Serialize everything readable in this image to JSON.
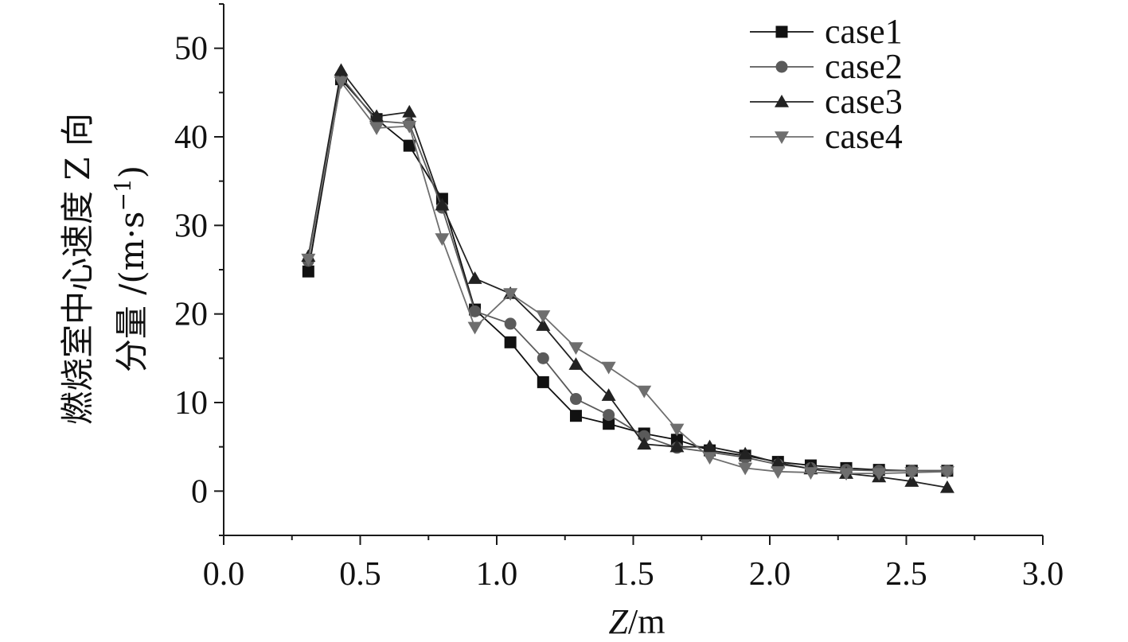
{
  "chart_data": {
    "type": "line",
    "title": "",
    "xlabel_italic": "Z",
    "xlabel_unit": "/m",
    "ylabel_line1": "燃烧室中心速度 Z 向",
    "ylabel_line2": "分量 /(m·s",
    "ylabel_sup": "−1",
    "ylabel_close": ")",
    "xlim": [
      0.0,
      3.0
    ],
    "ylim": [
      -5,
      55
    ],
    "xticks": [
      0.0,
      0.5,
      1.0,
      1.5,
      2.0,
      2.5,
      3.0
    ],
    "xtick_labels": [
      "0.0",
      "0.5",
      "1.0",
      "1.5",
      "2.0",
      "2.5",
      "3.0"
    ],
    "yticks": [
      0,
      10,
      20,
      30,
      40,
      50
    ],
    "ytick_labels": [
      "0",
      "10",
      "20",
      "30",
      "40",
      "50"
    ],
    "grid": false,
    "legend_position": "top-right",
    "series": [
      {
        "name": "case1",
        "marker": "square",
        "color": "#111111",
        "x": [
          0.31,
          0.43,
          0.56,
          0.68,
          0.8,
          0.92,
          1.05,
          1.17,
          1.29,
          1.41,
          1.54,
          1.66,
          1.78,
          1.91,
          2.03,
          2.15,
          2.28,
          2.4,
          2.52,
          2.65
        ],
        "y": [
          24.8,
          46.5,
          42.0,
          39.0,
          33.0,
          20.5,
          16.8,
          12.3,
          8.5,
          7.6,
          6.5,
          5.8,
          4.6,
          4.0,
          3.3,
          2.9,
          2.6,
          2.4,
          2.3,
          2.3
        ]
      },
      {
        "name": "case2",
        "marker": "circle",
        "color": "#5a5a5a",
        "x": [
          0.31,
          0.43,
          0.56,
          0.68,
          0.8,
          0.92,
          1.05,
          1.17,
          1.29,
          1.41,
          1.54,
          1.66,
          1.78,
          1.91,
          2.03,
          2.15,
          2.28,
          2.4,
          2.52,
          2.65
        ],
        "y": [
          26.0,
          46.8,
          41.8,
          41.5,
          32.0,
          20.3,
          18.9,
          15.0,
          10.4,
          8.6,
          6.2,
          4.9,
          4.4,
          3.8,
          3.0,
          2.6,
          2.4,
          2.3,
          2.3,
          2.3
        ]
      },
      {
        "name": "case3",
        "marker": "triangle-up",
        "color": "#222222",
        "x": [
          0.31,
          0.43,
          0.56,
          0.68,
          0.8,
          0.92,
          1.05,
          1.17,
          1.29,
          1.41,
          1.54,
          1.66,
          1.78,
          1.91,
          2.03,
          2.15,
          2.28,
          2.4,
          2.52,
          2.65
        ],
        "y": [
          26.5,
          47.5,
          42.3,
          42.8,
          32.3,
          24.0,
          22.3,
          18.7,
          14.3,
          10.8,
          5.3,
          5.0,
          5.0,
          4.2,
          3.2,
          2.5,
          2.0,
          1.6,
          1.1,
          0.4
        ]
      },
      {
        "name": "case4",
        "marker": "triangle-down",
        "color": "#6e6e6e",
        "x": [
          0.31,
          0.43,
          0.56,
          0.68,
          0.8,
          0.92,
          1.05,
          1.17,
          1.29,
          1.41,
          1.54,
          1.66,
          1.78,
          1.91,
          2.03,
          2.15,
          2.28,
          2.4,
          2.52,
          2.65
        ],
        "y": [
          26.2,
          46.2,
          41.0,
          41.2,
          28.5,
          18.5,
          22.3,
          19.8,
          16.2,
          14.0,
          11.3,
          7.0,
          3.8,
          2.6,
          2.2,
          2.1,
          2.0,
          2.0,
          2.1,
          2.2
        ]
      }
    ]
  }
}
